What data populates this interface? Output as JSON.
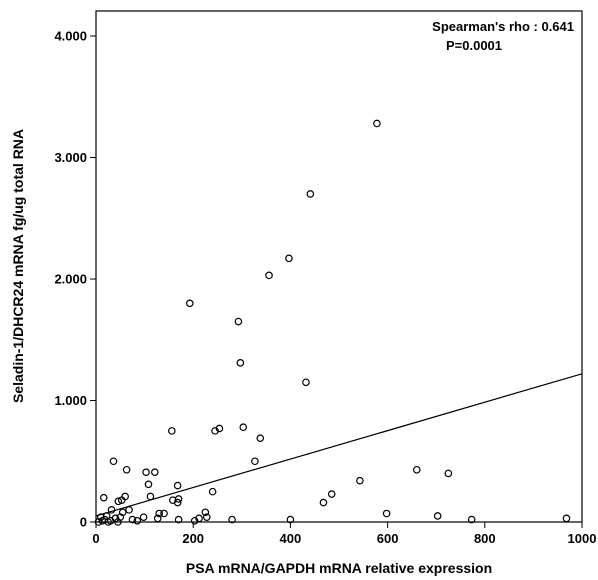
{
  "chart_data": {
    "type": "scatter",
    "xlabel": "PSA mRNA/GAPDH mRNA relative expression",
    "ylabel": "Seladin-1/DHCR24 mRNA fg/ug total RNA",
    "xlim": [
      0,
      1000
    ],
    "ylim": [
      0,
      4.2
    ],
    "x_ticks": [
      0,
      200,
      400,
      600,
      800,
      1000
    ],
    "x_tick_labels": [
      "0",
      "200",
      "400",
      "600",
      "800",
      "1000"
    ],
    "y_ticks": [
      0,
      1,
      2,
      3,
      4
    ],
    "y_tick_labels": [
      "0",
      "1.000",
      "2.000",
      "3.000",
      "4.000"
    ],
    "grid": false,
    "annotations": [
      "Spearman's rho : 0.641",
      "P=0.0001"
    ],
    "regression_line": {
      "x": [
        0,
        1000
      ],
      "y": [
        0.05,
        1.22
      ]
    },
    "points": [
      [
        578,
        3.28
      ],
      [
        441,
        2.7
      ],
      [
        397,
        2.17
      ],
      [
        356,
        2.03
      ],
      [
        193,
        1.8
      ],
      [
        293,
        1.65
      ],
      [
        297,
        1.31
      ],
      [
        432,
        1.15
      ],
      [
        254,
        0.77
      ],
      [
        303,
        0.78
      ],
      [
        245,
        0.75
      ],
      [
        156,
        0.75
      ],
      [
        338,
        0.69
      ],
      [
        327,
        0.5
      ],
      [
        36,
        0.5
      ],
      [
        63,
        0.43
      ],
      [
        103,
        0.41
      ],
      [
        121,
        0.41
      ],
      [
        660,
        0.43
      ],
      [
        725,
        0.4
      ],
      [
        168,
        0.3
      ],
      [
        108,
        0.31
      ],
      [
        543,
        0.34
      ],
      [
        485,
        0.23
      ],
      [
        240,
        0.25
      ],
      [
        16,
        0.2
      ],
      [
        60,
        0.21
      ],
      [
        112,
        0.21
      ],
      [
        158,
        0.18
      ],
      [
        170,
        0.19
      ],
      [
        168,
        0.16
      ],
      [
        468,
        0.16
      ],
      [
        46,
        0.17
      ],
      [
        53,
        0.18
      ],
      [
        32,
        0.1
      ],
      [
        68,
        0.1
      ],
      [
        55,
        0.08
      ],
      [
        130,
        0.07
      ],
      [
        140,
        0.07
      ],
      [
        225,
        0.08
      ],
      [
        228,
        0.04
      ],
      [
        212,
        0.03
      ],
      [
        98,
        0.04
      ],
      [
        127,
        0.03
      ],
      [
        203,
        0.01
      ],
      [
        280,
        0.02
      ],
      [
        170,
        0.02
      ],
      [
        598,
        0.07
      ],
      [
        703,
        0.05
      ],
      [
        773,
        0.02
      ],
      [
        968,
        0.03
      ],
      [
        400,
        0.02
      ],
      [
        10,
        0.04
      ],
      [
        18,
        0.02
      ],
      [
        25,
        0.0
      ],
      [
        30,
        0.01
      ],
      [
        40,
        0.03
      ],
      [
        45,
        0.0
      ],
      [
        75,
        0.02
      ],
      [
        85,
        0.01
      ],
      [
        5,
        0.0
      ],
      [
        13,
        0.01
      ],
      [
        22,
        0.05
      ],
      [
        50,
        0.04
      ]
    ]
  }
}
